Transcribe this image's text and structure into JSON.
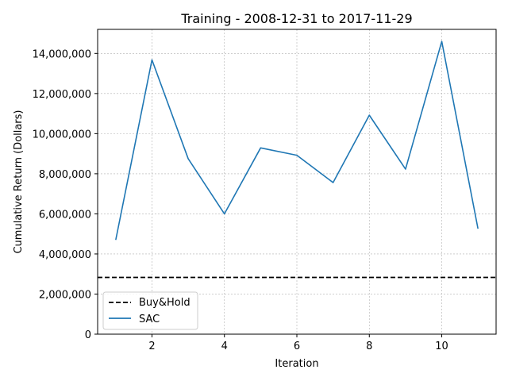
{
  "chart_data": {
    "type": "line",
    "title": "Training - 2008-12-31 to 2017-11-29",
    "xlabel": "Iteration",
    "ylabel": "Cumulative Return (Dollars)",
    "xlim": [
      0.5,
      11.5
    ],
    "ylim": [
      0,
      15200000
    ],
    "x_ticks": [
      2,
      4,
      6,
      8,
      10
    ],
    "x_tick_labels": [
      "2",
      "4",
      "6",
      "8",
      "10"
    ],
    "y_ticks": [
      0,
      2000000,
      4000000,
      6000000,
      8000000,
      10000000,
      12000000,
      14000000
    ],
    "y_tick_labels": [
      "0",
      "2,000,000",
      "4,000,000",
      "6,000,000",
      "8,000,000",
      "10,000,000",
      "12,000,000",
      "14,000,000"
    ],
    "grid": true,
    "legend_position": "lower-left",
    "series": [
      {
        "name": "Buy&Hold",
        "style": "dashed",
        "color": "#000000",
        "x": [
          0.5,
          11.5
        ],
        "values": [
          2830000,
          2830000
        ]
      },
      {
        "name": "SAC",
        "style": "solid",
        "color": "#1f77b4",
        "x": [
          1,
          2,
          3,
          4,
          5,
          6,
          7,
          8,
          9,
          10,
          11
        ],
        "values": [
          4700000,
          13680000,
          8750000,
          6000000,
          9290000,
          8920000,
          7560000,
          10920000,
          8230000,
          14600000,
          5260000
        ]
      }
    ]
  }
}
